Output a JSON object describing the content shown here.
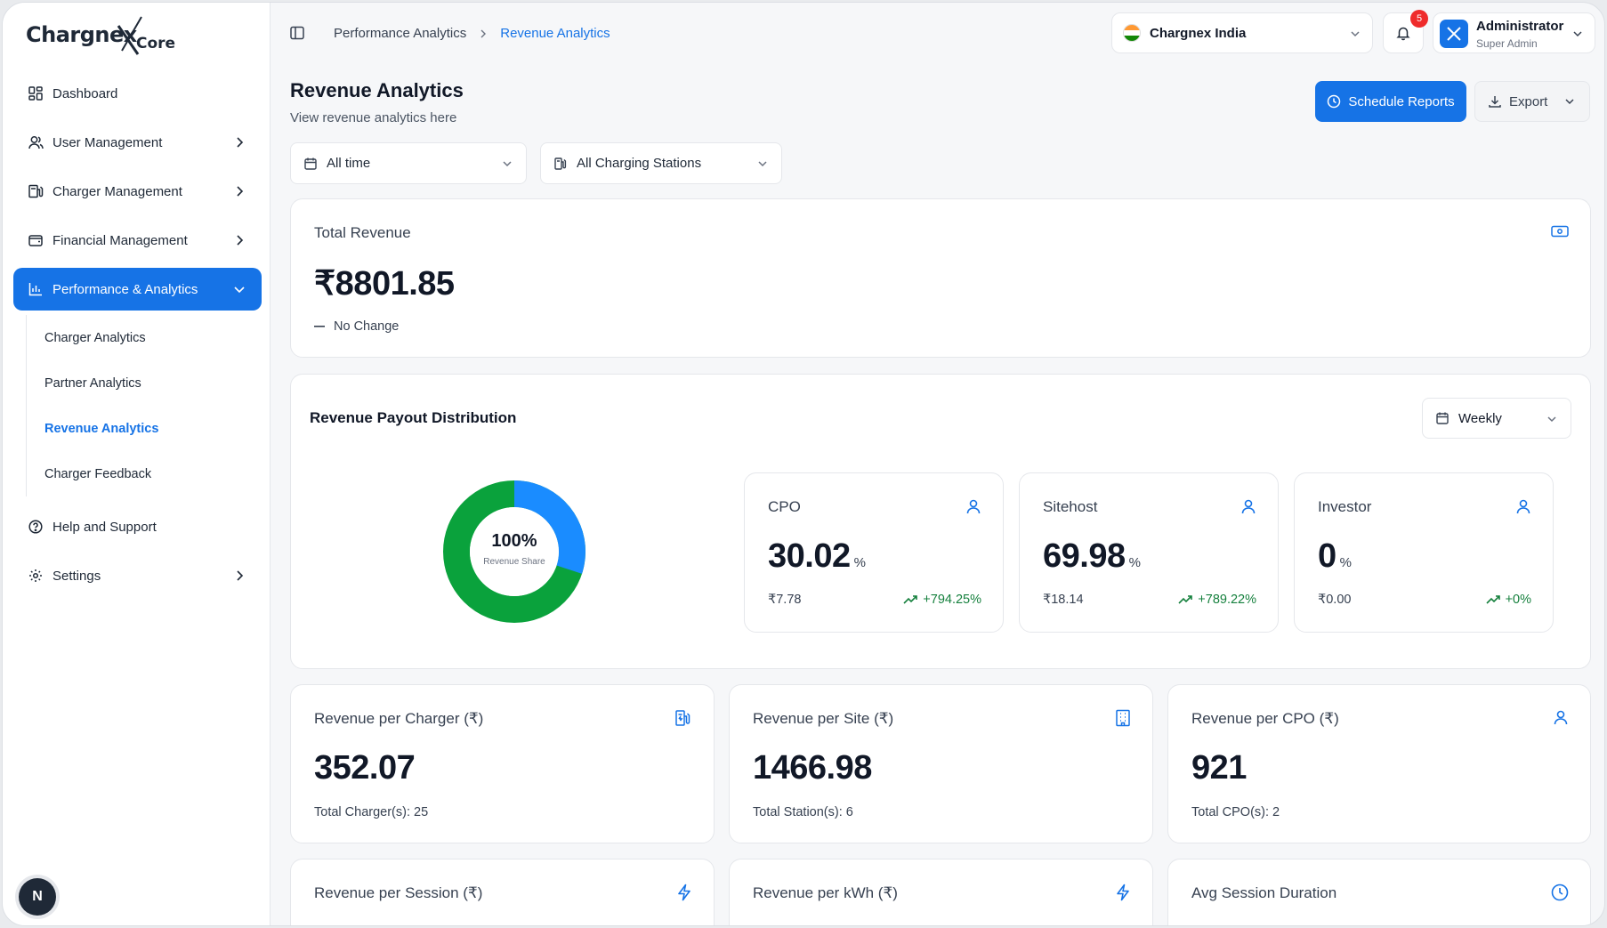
{
  "app": {
    "brand": "Chargnex",
    "brand_sub": "Core",
    "fab_letter": "N"
  },
  "sidebar": {
    "items": [
      {
        "label": "Dashboard",
        "icon": "dashboard-icon"
      },
      {
        "label": "User Management",
        "icon": "users-icon"
      },
      {
        "label": "Charger Management",
        "icon": "charger-icon"
      },
      {
        "label": "Financial Management",
        "icon": "wallet-icon"
      },
      {
        "label": "Performance & Analytics",
        "icon": "bar-chart-icon"
      },
      {
        "label": "Help and Support",
        "icon": "help-icon"
      },
      {
        "label": "Settings",
        "icon": "gear-icon"
      }
    ],
    "subitems": [
      {
        "label": "Charger Analytics"
      },
      {
        "label": "Partner Analytics"
      },
      {
        "label": "Revenue Analytics"
      },
      {
        "label": "Charger Feedback"
      }
    ]
  },
  "topbar": {
    "breadcrumb": [
      "Performance Analytics",
      "Revenue Analytics"
    ],
    "org": "Chargnex India",
    "notifications": "5",
    "user_name": "Administrator",
    "user_role": "Super Admin"
  },
  "header": {
    "title": "Revenue Analytics",
    "subtitle": "View revenue analytics here",
    "schedule_label": "Schedule Reports",
    "export_label": "Export"
  },
  "filters": {
    "time": "All time",
    "stations": "All Charging Stations"
  },
  "total_revenue": {
    "label": "Total Revenue",
    "value": "₹8801.85",
    "change": "No Change"
  },
  "distribution": {
    "title": "Revenue Payout Distribution",
    "period": "Weekly",
    "center_value": "100%",
    "center_label": "Revenue Share",
    "colors": {
      "cpo": "#1a8cff",
      "sitehost": "#0aa23c"
    },
    "shares": [
      {
        "label": "CPO",
        "value": "30.02",
        "unit": "%",
        "amount": "₹7.78",
        "trend": "+794.25%"
      },
      {
        "label": "Sitehost",
        "value": "69.98",
        "unit": "%",
        "amount": "₹18.14",
        "trend": "+789.22%"
      },
      {
        "label": "Investor",
        "value": "0",
        "unit": "%",
        "amount": "₹0.00",
        "trend": "+0%"
      }
    ]
  },
  "metrics": [
    {
      "label": "Revenue per Charger (₹)",
      "value": "352.07",
      "foot": "Total Charger(s): 25",
      "icon": "fuel-station-icon"
    },
    {
      "label": "Revenue per Site (₹)",
      "value": "1466.98",
      "foot": "Total Station(s): 6",
      "icon": "building-icon"
    },
    {
      "label": "Revenue per CPO (₹)",
      "value": "921",
      "foot": "Total CPO(s): 2",
      "icon": "user-icon"
    },
    {
      "label": "Revenue per Session (₹)",
      "icon": "bolt-icon"
    },
    {
      "label": "Revenue per kWh (₹)",
      "icon": "bolt-icon"
    },
    {
      "label": "Avg Session Duration",
      "icon": "clock-icon"
    }
  ]
}
